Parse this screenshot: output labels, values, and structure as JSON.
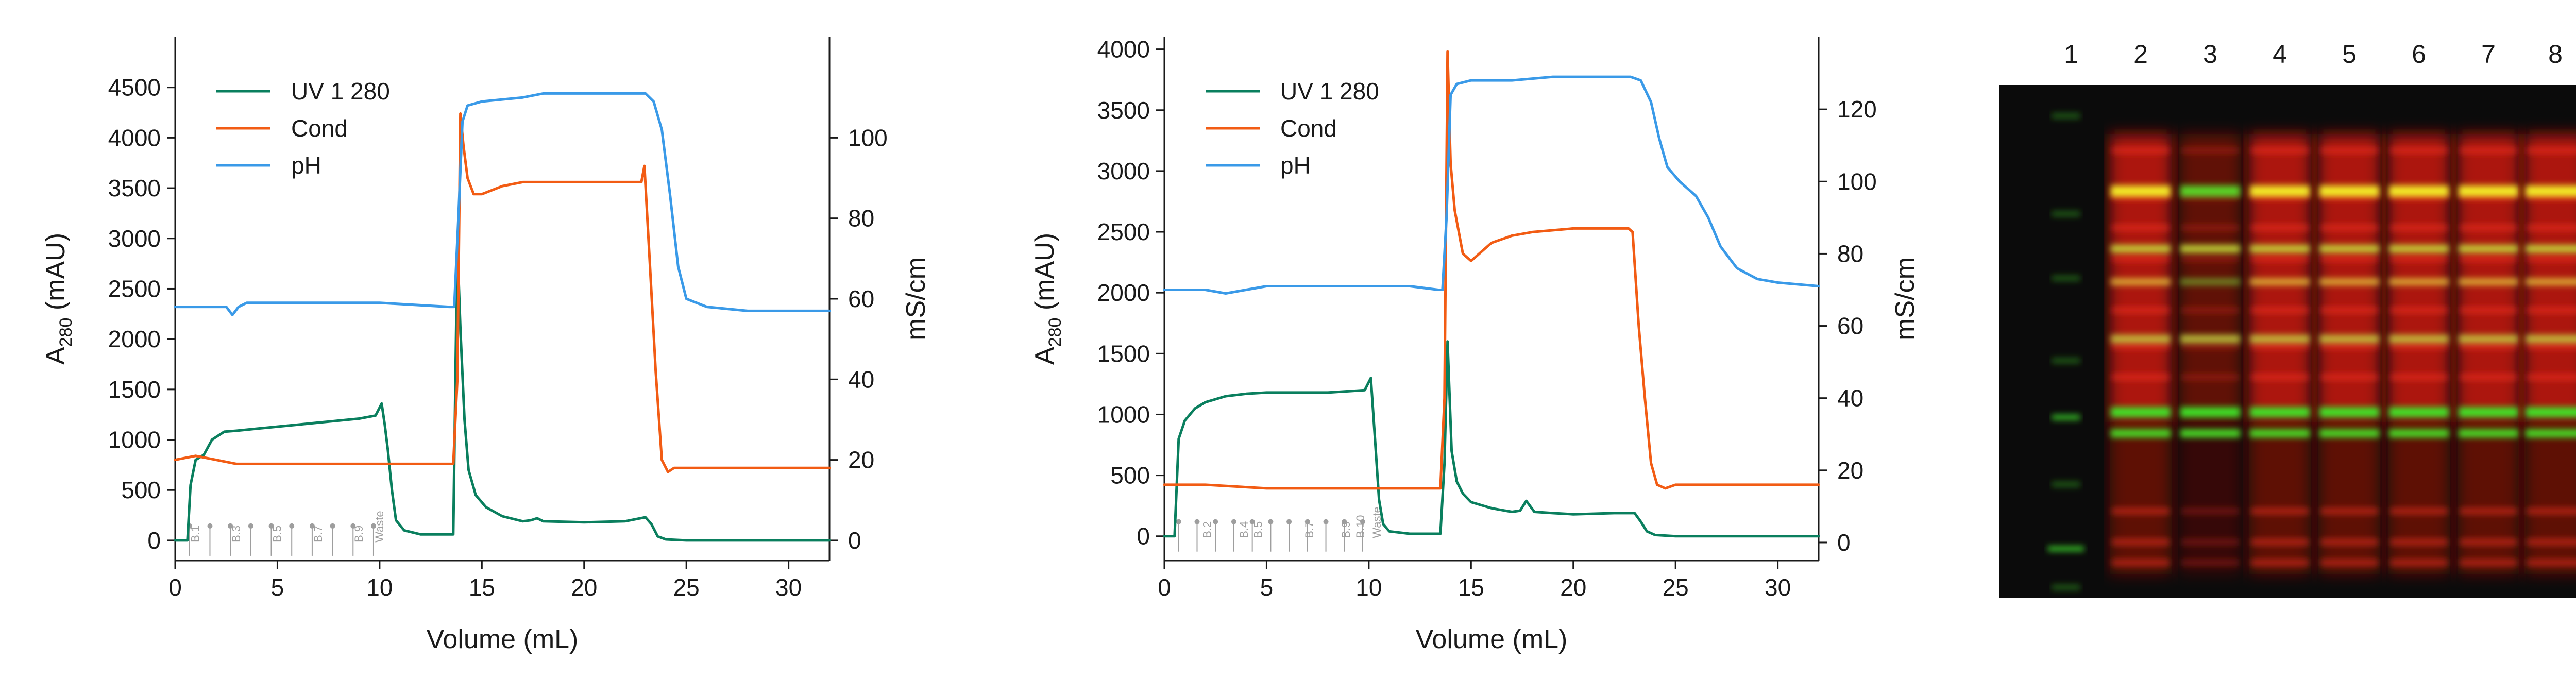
{
  "colors": {
    "UV 1 280": "#0a7f5e",
    "Cond": "#f25c14",
    "pH": "#3a9ae8",
    "axis": "#1a1a1a",
    "fraction_marks": "#9e9e9e",
    "gel_background": "#0b0b0b"
  },
  "chart_data": [
    {
      "type": "line",
      "xlabel": "Volume (mL)",
      "ylabel": {
        "main": "A",
        "sub": "280",
        "tail": " (mAU)"
      },
      "ylabel_right": "mS/cm",
      "xlim": [
        0,
        32
      ],
      "ylim": [
        -200,
        5000
      ],
      "ylim_right": [
        -5,
        125
      ],
      "xticks": [
        0,
        5,
        10,
        15,
        20,
        25,
        30
      ],
      "yticks": [
        0,
        500,
        1000,
        1500,
        2000,
        2500,
        3000,
        3500,
        4000,
        4500
      ],
      "yticks_right": [
        0,
        20,
        40,
        60,
        80,
        100
      ],
      "grid": false,
      "legend": {
        "position": "top-left",
        "entries": [
          "UV 1 280",
          "Cond",
          "pH"
        ]
      },
      "fractions": {
        "labels": [
          "B.1",
          "B.3",
          "B.5",
          "B.7",
          "B.9",
          "Waste"
        ],
        "positions": [
          1,
          3,
          5,
          7,
          9,
          10
        ],
        "boundaries": [
          0.7,
          1.7,
          2.7,
          3.7,
          4.7,
          5.7,
          6.7,
          7.7,
          8.7,
          9.7
        ]
      },
      "series": [
        {
          "name": "UV 1 280",
          "axis": "left",
          "x": [
            0,
            0.6,
            0.75,
            1.0,
            1.4,
            1.8,
            2.4,
            3.0,
            4,
            5,
            6,
            7,
            8,
            9,
            9.8,
            10.1,
            10.25,
            10.4,
            10.6,
            10.8,
            11.2,
            12,
            13,
            13.6,
            13.8,
            13.95,
            14.15,
            14.35,
            14.7,
            15.2,
            16,
            17,
            17.4,
            17.7,
            18,
            20,
            22,
            23.0,
            23.3,
            23.6,
            24,
            25,
            32
          ],
          "values": [
            0,
            0,
            550,
            800,
            850,
            1000,
            1080,
            1090,
            1110,
            1130,
            1150,
            1170,
            1190,
            1210,
            1240,
            1360,
            1150,
            900,
            500,
            200,
            100,
            60,
            60,
            60,
            2950,
            2100,
            1200,
            700,
            450,
            330,
            240,
            190,
            200,
            220,
            190,
            180,
            190,
            230,
            160,
            40,
            10,
            0,
            0
          ]
        },
        {
          "name": "Cond",
          "axis": "right",
          "x": [
            0,
            1,
            2,
            3,
            5,
            8,
            12,
            13.6,
            13.8,
            13.95,
            14.1,
            14.3,
            14.6,
            15,
            16,
            17,
            18,
            20,
            22,
            22.8,
            22.95,
            23.2,
            23.5,
            23.8,
            24.1,
            24.4,
            25,
            32
          ],
          "values": [
            20,
            21,
            20,
            19,
            19,
            19,
            19,
            19,
            40,
            106,
            98,
            90,
            86,
            86,
            88,
            89,
            89,
            89,
            89,
            89,
            93,
            70,
            42,
            20,
            17,
            18,
            18,
            18
          ]
        },
        {
          "name": "pH",
          "axis": "right",
          "x": [
            0,
            2.5,
            2.8,
            3.1,
            3.5,
            5,
            10,
            13.4,
            13.65,
            13.85,
            14.05,
            14.3,
            15,
            17,
            18,
            20,
            22,
            23,
            23.4,
            23.8,
            24.2,
            24.6,
            25,
            26,
            28,
            32
          ],
          "values": [
            58,
            58,
            56,
            58,
            59,
            59,
            59,
            58,
            58,
            80,
            104,
            108,
            109,
            110,
            111,
            111,
            111,
            111,
            109,
            102,
            86,
            68,
            60,
            58,
            57,
            57
          ]
        }
      ]
    },
    {
      "type": "line",
      "xlabel": "Volume (mL)",
      "ylabel": {
        "main": "A",
        "sub": "280",
        "tail": " (mAU)"
      },
      "ylabel_right": "mS/cm",
      "xlim": [
        0,
        32
      ],
      "ylim": [
        -200,
        4100
      ],
      "ylim_right": [
        -5,
        140
      ],
      "xticks": [
        0,
        5,
        10,
        15,
        20,
        25,
        30
      ],
      "yticks": [
        0,
        500,
        1000,
        1500,
        2000,
        2500,
        3000,
        3500,
        4000
      ],
      "yticks_right": [
        0,
        20,
        40,
        60,
        80,
        100,
        120
      ],
      "grid": false,
      "legend": {
        "position": "top-left",
        "entries": [
          "UV 1 280",
          "Cond",
          "pH"
        ]
      },
      "fractions": {
        "labels": [
          "B.2",
          "B.4",
          "B.5",
          "B.7",
          "B.9",
          "B.10",
          "Waste"
        ],
        "positions": [
          2.1,
          3.9,
          4.6,
          7.1,
          8.9,
          9.6,
          10.4
        ],
        "boundaries": [
          0.7,
          1.6,
          2.5,
          3.4,
          4.3,
          5.2,
          6.1,
          7.0,
          7.9,
          8.8,
          9.7
        ]
      },
      "series": [
        {
          "name": "UV 1 280",
          "axis": "left",
          "x": [
            0,
            0.5,
            0.7,
            1.0,
            1.5,
            2,
            3,
            4,
            5,
            6,
            8,
            9.8,
            10.1,
            10.3,
            10.5,
            10.7,
            11,
            12,
            13,
            13.5,
            13.7,
            13.85,
            14.05,
            14.3,
            14.6,
            15,
            16,
            17,
            17.4,
            17.7,
            18.1,
            19,
            20,
            22,
            23.0,
            23.3,
            23.6,
            24,
            25,
            32
          ],
          "values": [
            0,
            0,
            800,
            950,
            1050,
            1100,
            1150,
            1170,
            1180,
            1180,
            1180,
            1200,
            1300,
            800,
            300,
            100,
            40,
            20,
            20,
            20,
            600,
            1600,
            700,
            450,
            350,
            280,
            230,
            200,
            210,
            290,
            200,
            190,
            180,
            190,
            190,
            120,
            40,
            10,
            0,
            0
          ]
        },
        {
          "name": "Cond",
          "axis": "right",
          "x": [
            0,
            2,
            5,
            8,
            12,
            13.5,
            13.7,
            13.85,
            14.0,
            14.2,
            14.6,
            15,
            16,
            17,
            18,
            20,
            22,
            22.7,
            22.9,
            23.2,
            23.5,
            23.8,
            24.1,
            24.5,
            25,
            32
          ],
          "values": [
            16,
            16,
            15,
            15,
            15,
            15,
            40,
            136,
            105,
            92,
            80,
            78,
            83,
            85,
            86,
            87,
            87,
            87,
            86,
            60,
            40,
            22,
            16,
            15,
            16,
            16
          ]
        },
        {
          "name": "pH",
          "axis": "right",
          "x": [
            0,
            2,
            3,
            4,
            5,
            8,
            12,
            13.4,
            13.6,
            13.8,
            14.0,
            14.3,
            15,
            17,
            19,
            21,
            22,
            22.8,
            23.3,
            23.8,
            24.2,
            24.6,
            25.2,
            26,
            26.6,
            27.2,
            28,
            29,
            30,
            32
          ],
          "values": [
            70,
            70,
            69,
            70,
            71,
            71,
            71,
            70,
            70,
            90,
            124,
            127,
            128,
            128,
            129,
            129,
            129,
            129,
            128,
            122,
            112,
            104,
            100,
            96,
            90,
            82,
            76,
            73,
            72,
            71
          ]
        }
      ]
    }
  ],
  "gel": {
    "lanes": [
      "1",
      "2",
      "3",
      "4",
      "5",
      "6",
      "7",
      "8"
    ]
  }
}
